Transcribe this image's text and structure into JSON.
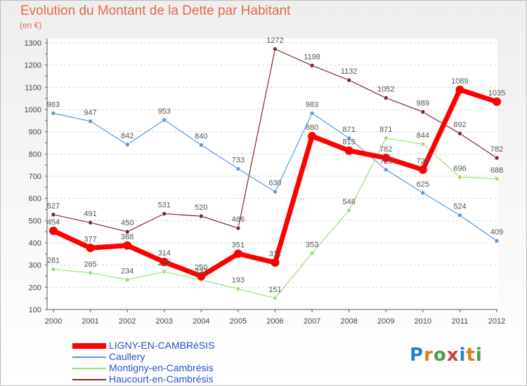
{
  "header": {
    "title": "Evolution du Montant de la Dette par Habitant",
    "unit": "(en €)"
  },
  "logo": {
    "text": "Proxiti",
    "colors": [
      "#2a7fd0",
      "#e07a1f",
      "#3aa34a",
      "#d23c3c",
      "#2a7fd0",
      "#e07a1f",
      "#3aa34a"
    ]
  },
  "chart_data": {
    "type": "line",
    "title": "Evolution du Montant de la Dette par Habitant",
    "ylabel": "(en €)",
    "xlabel": "",
    "x": [
      2000,
      2001,
      2002,
      2003,
      2004,
      2005,
      2006,
      2007,
      2008,
      2009,
      2010,
      2011,
      2012
    ],
    "ylim": [
      100,
      1300
    ],
    "yticks": [
      100,
      200,
      300,
      400,
      500,
      600,
      700,
      800,
      900,
      1000,
      1100,
      1200,
      1300
    ],
    "grid": "horizontal dashed",
    "legend_position": "bottom-left",
    "series": [
      {
        "name": "Haucourt-en-Cambrésis",
        "color": "#7b2a2a",
        "width": 1.2,
        "values": [
          527,
          491,
          450,
          531,
          520,
          466,
          1272,
          1198,
          1132,
          1052,
          989,
          892,
          782
        ]
      },
      {
        "name": "Caullery",
        "color": "#5b9bd5",
        "width": 1.2,
        "values": [
          983,
          947,
          842,
          953,
          840,
          733,
          630,
          983,
          871,
          729,
          625,
          524,
          409
        ]
      },
      {
        "name": "Montigny-en-Cambrésis",
        "color": "#9be07a",
        "width": 1.2,
        "values": [
          281,
          265,
          234,
          270,
          233,
          193,
          151,
          353,
          546,
          871,
          844,
          696,
          688
        ]
      },
      {
        "name": "LIGNY-EN-CAMBRéSIS",
        "color": "#ff0000",
        "width": 7,
        "values": [
          454,
          377,
          388,
          314,
          250,
          351,
          311,
          880,
          815,
          782,
          729,
          1089,
          1035
        ]
      }
    ],
    "legend": [
      {
        "name": "LIGNY-EN-CAMBRéSIS",
        "color": "#ff0000",
        "width": 8
      },
      {
        "name": "Caullery",
        "color": "#5b9bd5",
        "width": 2
      },
      {
        "name": "Montigny-en-Cambrésis",
        "color": "#9be07a",
        "width": 2
      },
      {
        "name": "Haucourt-en-Cambrésis",
        "color": "#7b2a2a",
        "width": 2
      }
    ]
  }
}
